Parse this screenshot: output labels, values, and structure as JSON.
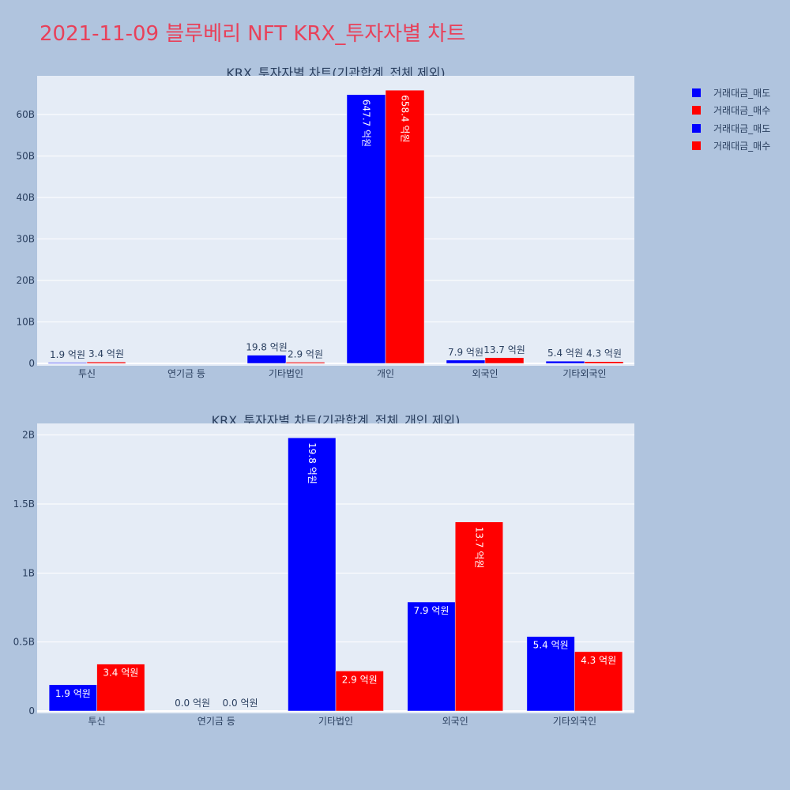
{
  "title": "2021-11-09 블루베리 NFT KRX_투자자별 차트",
  "legend": [
    {
      "label": "거래대금_매도",
      "color": "#0000ff"
    },
    {
      "label": "거래대금_매수",
      "color": "#ff0000"
    },
    {
      "label": "거래대금_매도",
      "color": "#0000ff"
    },
    {
      "label": "거래대금_매수",
      "color": "#ff0000"
    }
  ],
  "chart_data": [
    {
      "type": "bar",
      "title": "KRX_투자자별 차트(기관합계_전체 제외)",
      "categories": [
        "투신",
        "연기금 등",
        "기타법인",
        "개인",
        "외국인",
        "기타외국인"
      ],
      "series": [
        {
          "name": "거래대금_매도",
          "color": "#0000ff",
          "values": [
            190000000,
            0,
            1980000000,
            64770000000,
            790000000,
            540000000
          ],
          "labels": [
            "1.9 억원",
            "",
            "19.8 억원",
            "647.7 억원",
            "7.9 억원",
            "5.4 억원"
          ]
        },
        {
          "name": "거래대금_매수",
          "color": "#ff0000",
          "values": [
            340000000,
            0,
            290000000,
            65840000000,
            1370000000,
            430000000
          ],
          "labels": [
            "3.4 억원",
            "",
            "2.9 억원",
            "658.4 억원",
            "13.7 억원",
            "4.3 억원"
          ]
        }
      ],
      "yticks": [
        {
          "value": 0,
          "label": "0"
        },
        {
          "value": 10000000000,
          "label": "10B"
        },
        {
          "value": 20000000000,
          "label": "20B"
        },
        {
          "value": 30000000000,
          "label": "30B"
        },
        {
          "value": 40000000000,
          "label": "40B"
        },
        {
          "value": 50000000000,
          "label": "50B"
        },
        {
          "value": 60000000000,
          "label": "60B"
        }
      ],
      "ylim": [
        0,
        69300000000
      ],
      "grid": true
    },
    {
      "type": "bar",
      "title": "KRX_투자자별 차트(기관합계_전체_개인 제외)",
      "categories": [
        "투신",
        "연기금 등",
        "기타법인",
        "외국인",
        "기타외국인"
      ],
      "series": [
        {
          "name": "거래대금_매도",
          "color": "#0000ff",
          "values": [
            190000000,
            0,
            1980000000,
            790000000,
            540000000
          ],
          "labels": [
            "1.9 억원",
            "0.0 억원",
            "19.8 억원",
            "7.9 억원",
            "5.4 억원"
          ]
        },
        {
          "name": "거래대금_매수",
          "color": "#ff0000",
          "values": [
            340000000,
            0,
            290000000,
            1370000000,
            430000000
          ],
          "labels": [
            "3.4 억원",
            "0.0 억원",
            "2.9 억원",
            "13.7 억원",
            "4.3 억원"
          ]
        }
      ],
      "yticks": [
        {
          "value": 0,
          "label": "0"
        },
        {
          "value": 500000000,
          "label": "0.5B"
        },
        {
          "value": 1000000000,
          "label": "1B"
        },
        {
          "value": 1500000000,
          "label": "1.5B"
        },
        {
          "value": 2000000000,
          "label": "2B"
        }
      ],
      "ylim": [
        0,
        2084000000
      ],
      "grid": true
    }
  ]
}
